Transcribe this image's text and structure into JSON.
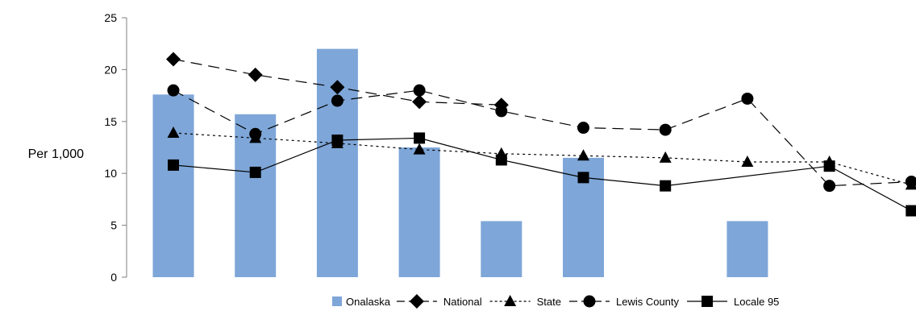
{
  "chart_data": {
    "type": "bar",
    "ylabel": "Per 1,000",
    "ylim": [
      0,
      25
    ],
    "yticks": [
      0,
      5,
      10,
      15,
      20,
      25
    ],
    "grid": false,
    "legend_position": "bottom-right",
    "categories": [
      "",
      "",
      "",
      "",
      "",
      "",
      "",
      "",
      "",
      ""
    ],
    "bars": {
      "name": "Onalaska",
      "color": "#7ea6d8",
      "values": [
        17.6,
        15.7,
        22.0,
        12.5,
        5.4,
        11.5,
        null,
        5.4,
        null,
        null
      ]
    },
    "series": [
      {
        "name": "National",
        "marker": "diamond",
        "dash": "dash",
        "values": [
          21.0,
          19.5,
          18.3,
          16.9,
          16.6,
          null,
          null,
          null,
          null,
          null
        ]
      },
      {
        "name": "State",
        "marker": "triangle",
        "dash": "dot",
        "values": [
          13.9,
          13.4,
          12.9,
          12.3,
          11.9,
          11.7,
          11.5,
          11.1,
          11.1,
          8.9
        ]
      },
      {
        "name": "Lewis County",
        "marker": "circle",
        "dash": "dash",
        "values": [
          18.0,
          13.8,
          17.0,
          18.0,
          16.0,
          14.4,
          14.2,
          17.2,
          8.8,
          9.2
        ]
      },
      {
        "name": "Locale 95",
        "marker": "square",
        "dash": "solid",
        "values": [
          10.8,
          10.1,
          13.2,
          13.4,
          11.3,
          9.6,
          8.8,
          null,
          10.7,
          6.4
        ]
      }
    ]
  }
}
